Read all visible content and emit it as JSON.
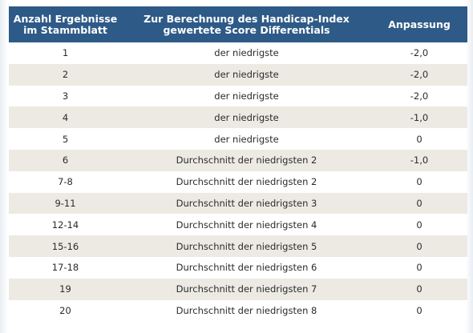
{
  "table": {
    "headers": {
      "col1_line1": "Anzahl Ergebnisse",
      "col1_line2": "im Stammblatt",
      "col2_line1": "Zur Berechnung des Handicap-Index",
      "col2_line2": "gewertete Score Differentials",
      "col3": "Anpassung"
    },
    "rows": [
      {
        "count": "1",
        "differentials": "der niedrigste",
        "adjustment": "-2,0"
      },
      {
        "count": "2",
        "differentials": "der niedrigste",
        "adjustment": "-2,0"
      },
      {
        "count": "3",
        "differentials": "der niedrigste",
        "adjustment": "-2,0"
      },
      {
        "count": "4",
        "differentials": "der niedrigste",
        "adjustment": "-1,0"
      },
      {
        "count": "5",
        "differentials": "der niedrigste",
        "adjustment": "0"
      },
      {
        "count": "6",
        "differentials": "Durchschnitt der niedrigsten 2",
        "adjustment": "-1,0"
      },
      {
        "count": "7-8",
        "differentials": "Durchschnitt der niedrigsten 2",
        "adjustment": "0"
      },
      {
        "count": "9-11",
        "differentials": "Durchschnitt der niedrigsten 3",
        "adjustment": "0"
      },
      {
        "count": "12-14",
        "differentials": "Durchschnitt der niedrigsten 4",
        "adjustment": "0"
      },
      {
        "count": "15-16",
        "differentials": "Durchschnitt der niedrigsten 5",
        "adjustment": "0"
      },
      {
        "count": "17-18",
        "differentials": "Durchschnitt der niedrigsten 6",
        "adjustment": "0"
      },
      {
        "count": "19",
        "differentials": "Durchschnitt der niedrigsten 7",
        "adjustment": "0"
      },
      {
        "count": "20",
        "differentials": "Durchschnitt der niedrigsten 8",
        "adjustment": "0"
      }
    ]
  },
  "colors": {
    "header_bg": "#2e5a87",
    "header_text": "#ffffff",
    "row_alt_bg": "#edeae4",
    "row_bg": "#ffffff",
    "body_text": "#2b2b2b"
  }
}
